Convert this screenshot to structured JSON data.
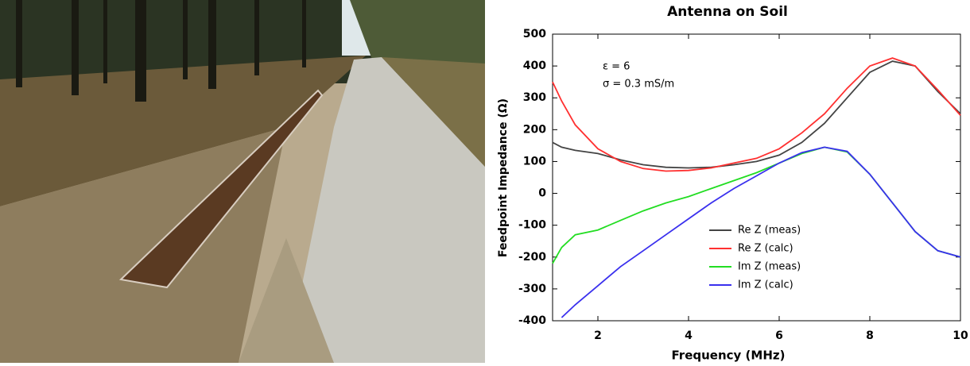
{
  "chart_data": {
    "type": "line",
    "title": "Antenna on Soil",
    "x_label": "Frequency (MHz)",
    "y_label": "Feedpoint Impedance (Ω)",
    "annotations": [
      "ε = 6",
      "σ = 0.3 mS/m"
    ],
    "x": [
      1,
      1.2,
      1.5,
      2,
      2.5,
      3,
      3.5,
      4,
      4.5,
      5,
      5.5,
      6,
      6.5,
      7,
      7.5,
      8,
      8.5,
      9,
      9.5,
      10
    ],
    "series": [
      {
        "name": "Re Z (meas)",
        "color": "#444444",
        "values": [
          160,
          145,
          135,
          125,
          105,
          90,
          82,
          80,
          82,
          90,
          100,
          120,
          160,
          220,
          300,
          380,
          415,
          400,
          320,
          250
        ]
      },
      {
        "name": "Re Z (calc)",
        "color": "#ff3030",
        "values": [
          350,
          290,
          215,
          140,
          100,
          78,
          70,
          72,
          80,
          95,
          110,
          140,
          190,
          250,
          330,
          400,
          425,
          400,
          325,
          245
        ]
      },
      {
        "name": "Im Z (meas)",
        "color": "#22dd22",
        "values": [
          -220,
          -170,
          -130,
          -115,
          -85,
          -55,
          -30,
          -10,
          15,
          40,
          65,
          95,
          125,
          145,
          130,
          60,
          -30,
          -120,
          -180,
          -200
        ]
      },
      {
        "name": "Im Z (calc)",
        "color": "#3a30ee",
        "values": [
          null,
          -390,
          -350,
          -290,
          -230,
          -180,
          -130,
          -80,
          -30,
          15,
          55,
          95,
          128,
          145,
          132,
          60,
          -30,
          -120,
          -180,
          -200
        ]
      }
    ],
    "xlim": [
      1,
      10
    ],
    "xticks": [
      2,
      4,
      6,
      8,
      10
    ],
    "ylim": [
      -400,
      500
    ],
    "yticks": [
      -400,
      -300,
      -200,
      -100,
      0,
      100,
      200,
      300,
      400,
      500
    ],
    "legend": "lower right"
  }
}
